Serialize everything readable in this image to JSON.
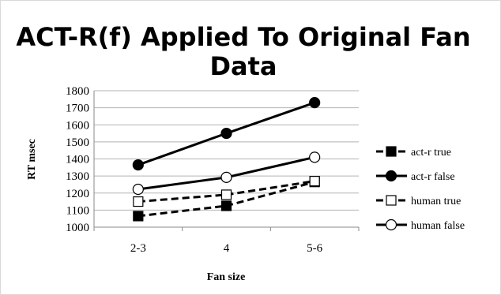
{
  "chart_data": {
    "type": "line",
    "title_line1": "ACT-R(f) Applied To Original Fan",
    "title_line2": "Data",
    "xlabel": "Fan size",
    "ylabel": "RT msec",
    "categories": [
      "2-3",
      "4",
      "5-6"
    ],
    "ylim": [
      1000,
      1800
    ],
    "yticks": [
      1000,
      1100,
      1200,
      1300,
      1400,
      1500,
      1600,
      1700,
      1800
    ],
    "grid": true,
    "legend_position": "right",
    "series": [
      {
        "name": "act-r true",
        "values": [
          1065,
          1125,
          1265
        ],
        "line": "dashed",
        "marker": "square",
        "filled": true
      },
      {
        "name": "act-r false",
        "values": [
          1365,
          1550,
          1730
        ],
        "line": "solid",
        "marker": "circle",
        "filled": true
      },
      {
        "name": "human true",
        "values": [
          1150,
          1190,
          1270
        ],
        "line": "dashed",
        "marker": "square",
        "filled": false
      },
      {
        "name": "human false",
        "values": [
          1222,
          1292,
          1410
        ],
        "line": "solid",
        "marker": "circle",
        "filled": false
      }
    ],
    "colors": {
      "line": "#000000",
      "grid": "#b3b3b3",
      "axis": "#888888"
    }
  }
}
